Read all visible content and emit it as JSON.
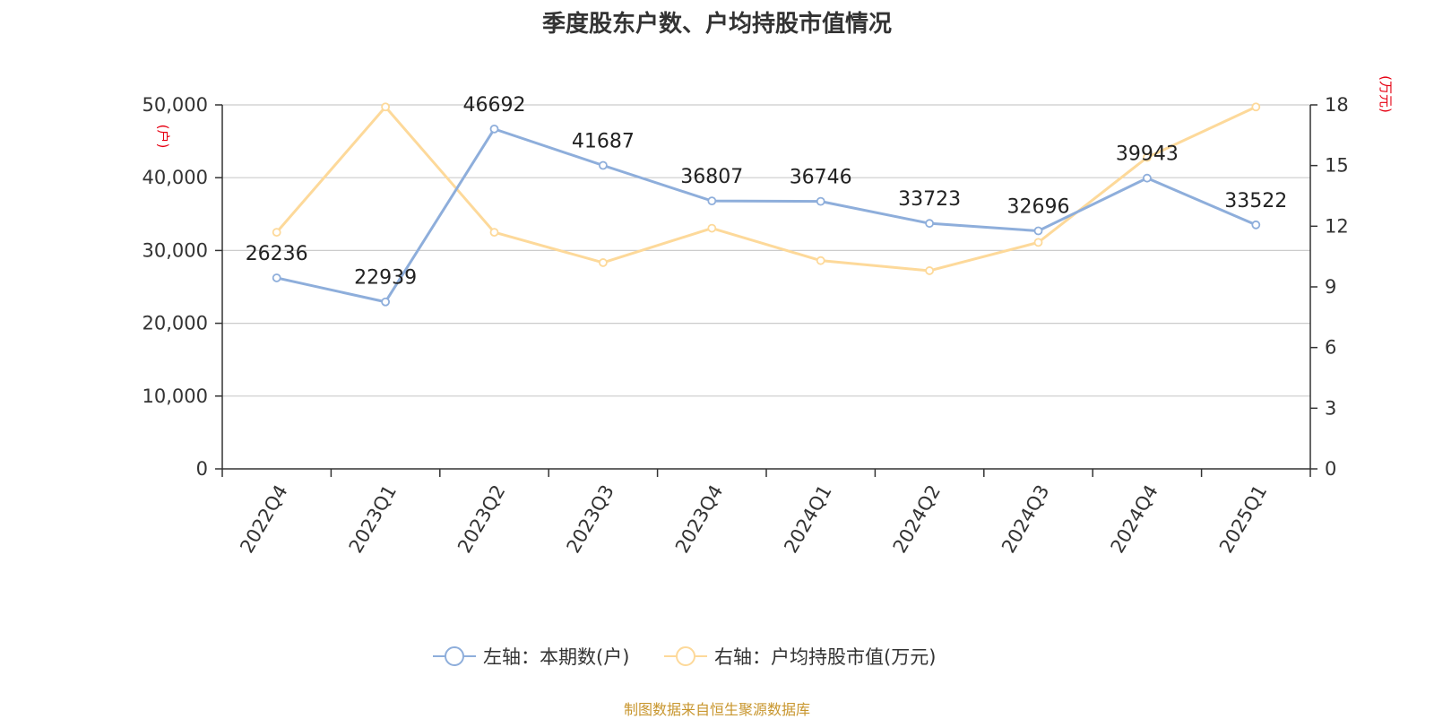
{
  "title": "季度股东户数、户均持股市值情况",
  "source": "制图数据来自恒生聚源数据库",
  "colors": {
    "series_left": "#8eaedb",
    "series_right": "#fdd99a",
    "grid": "#cccccc",
    "axis": "#333333",
    "unit": "#e60012",
    "source": "#c8962e"
  },
  "chart_data": {
    "type": "line",
    "title": "季度股东户数、户均持股市值情况",
    "categories": [
      "2022Q4",
      "2023Q1",
      "2023Q2",
      "2023Q3",
      "2023Q4",
      "2024Q1",
      "2024Q2",
      "2024Q3",
      "2024Q4",
      "2025Q1"
    ],
    "y_left": {
      "unit": "(户)",
      "min": 0,
      "max": 50000,
      "ticks": [
        0,
        10000,
        20000,
        30000,
        40000,
        50000
      ],
      "tick_labels": [
        "0",
        "10,000",
        "20,000",
        "30,000",
        "40,000",
        "50,000"
      ]
    },
    "y_right": {
      "unit": "(万元)",
      "min": 0,
      "max": 18,
      "ticks": [
        0,
        3,
        6,
        9,
        12,
        15,
        18
      ],
      "tick_labels": [
        "0",
        "3",
        "6",
        "9",
        "12",
        "15",
        "18"
      ]
    },
    "grid": true,
    "legend_position": "bottom-center",
    "series": [
      {
        "name": "左轴：本期数(户)",
        "axis": "left",
        "values": [
          26236,
          22939,
          46692,
          41687,
          36807,
          36746,
          33723,
          32696,
          39943,
          33522
        ],
        "data_labels": [
          "26236",
          "22939",
          "46692",
          "41687",
          "36807",
          "36746",
          "33723",
          "32696",
          "39943",
          "33522"
        ]
      },
      {
        "name": "右轴：户均持股市值(万元)",
        "axis": "right",
        "values": [
          11.7,
          17.9,
          11.7,
          10.2,
          11.9,
          10.3,
          9.8,
          11.2,
          15.4,
          17.9
        ]
      }
    ]
  }
}
